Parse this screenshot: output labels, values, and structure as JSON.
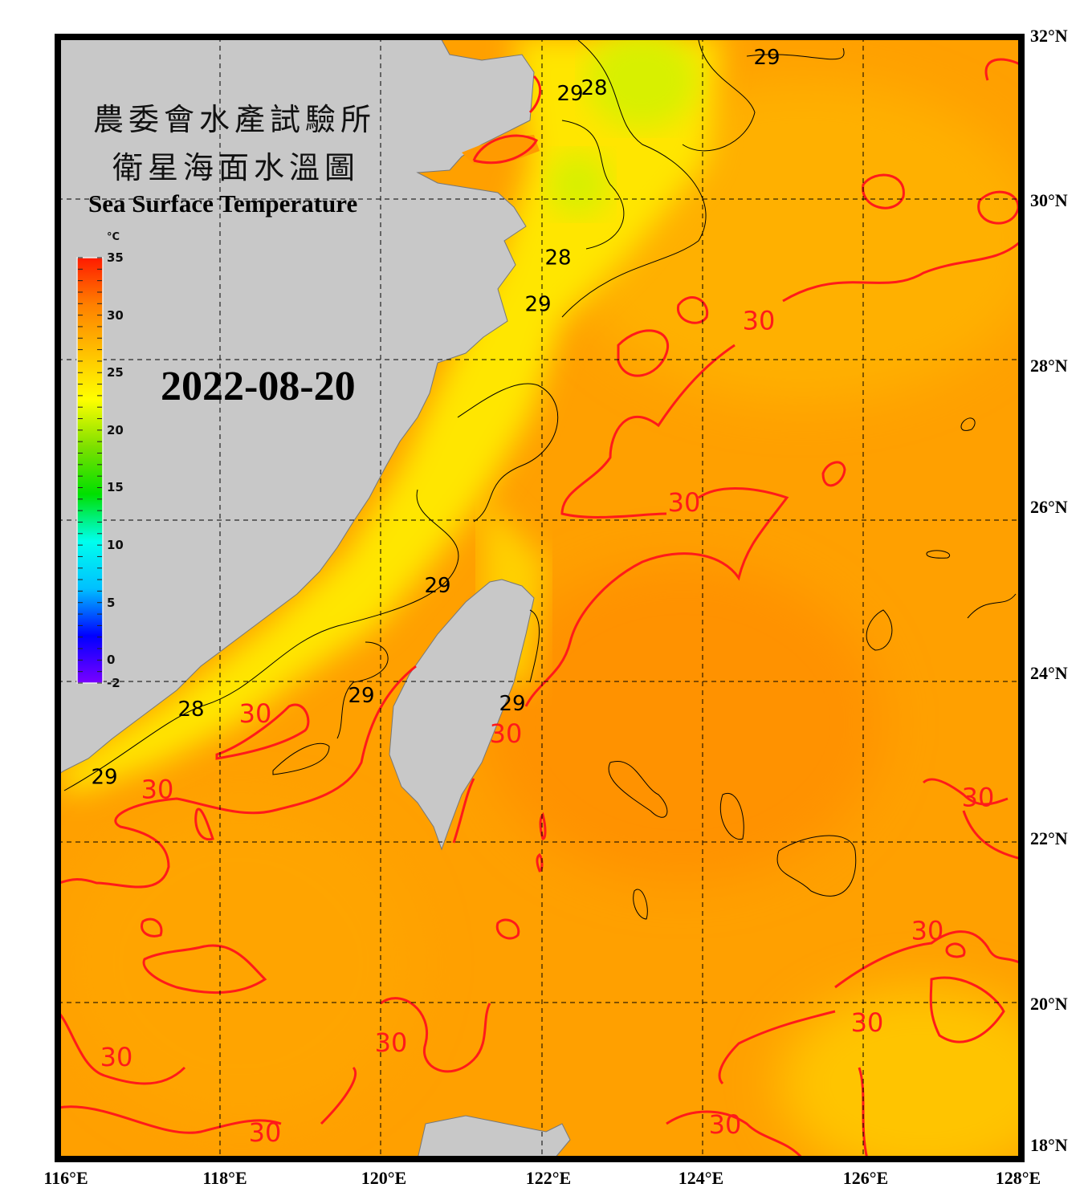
{
  "title_zh_line1": "農委會水產試驗所",
  "title_zh_line2": "衛星海面水溫圖",
  "title_en": "Sea Surface Temperature",
  "date": "2022-08-20",
  "colorbar": {
    "unit": "°C",
    "min": -2,
    "max": 35,
    "tick_labels": [
      "35",
      "30",
      "25",
      "20",
      "15",
      "10",
      "5",
      "0",
      "-2"
    ],
    "tick_values": [
      35,
      30,
      25,
      20,
      15,
      10,
      5,
      0,
      -2
    ],
    "colors": [
      "#7a00ff",
      "#0000ff",
      "#00c0ff",
      "#00ffee",
      "#00e000",
      "#7de000",
      "#ffff00",
      "#ffc000",
      "#ff8000",
      "#ff1a00"
    ]
  },
  "axes": {
    "lon_range": [
      116,
      128
    ],
    "lat_range": [
      18,
      32
    ],
    "lon_labels": [
      "116°E",
      "118°E",
      "120°E",
      "122°E",
      "124°E",
      "126°E",
      "128°E"
    ],
    "lat_labels": [
      "32°N",
      "30°N",
      "28°N",
      "26°N",
      "24°N",
      "22°N",
      "20°N",
      "18°N"
    ]
  },
  "colors": {
    "land": "#c8c8c8",
    "sea_warm": "#ff9f00",
    "sea_cool": "#ffe000",
    "contour_30": "#ff1a1a",
    "contour_other": "#000000"
  },
  "contour_labels": [
    {
      "text": "29",
      "lon": 124.83,
      "lat": 31.76,
      "color": "black"
    },
    {
      "text": "29",
      "lon": 122.38,
      "lat": 31.31,
      "color": "black"
    },
    {
      "text": "28",
      "lon": 122.68,
      "lat": 31.38,
      "color": "black"
    },
    {
      "text": "28",
      "lon": 122.23,
      "lat": 29.26,
      "color": "black"
    },
    {
      "text": "29",
      "lon": 121.98,
      "lat": 28.68,
      "color": "black"
    },
    {
      "text": "30",
      "lon": 124.73,
      "lat": 28.45,
      "color": "red"
    },
    {
      "text": "30",
      "lon": 123.8,
      "lat": 26.18,
      "color": "red"
    },
    {
      "text": "29",
      "lon": 120.73,
      "lat": 25.17,
      "color": "black"
    },
    {
      "text": "29",
      "lon": 119.78,
      "lat": 23.8,
      "color": "black"
    },
    {
      "text": "29",
      "lon": 121.66,
      "lat": 23.7,
      "color": "black"
    },
    {
      "text": "30",
      "lon": 121.58,
      "lat": 23.3,
      "color": "red"
    },
    {
      "text": "28",
      "lon": 117.66,
      "lat": 23.63,
      "color": "black"
    },
    {
      "text": "30",
      "lon": 118.46,
      "lat": 23.55,
      "color": "red"
    },
    {
      "text": "29",
      "lon": 116.58,
      "lat": 22.78,
      "color": "black"
    },
    {
      "text": "30",
      "lon": 117.24,
      "lat": 22.6,
      "color": "red"
    },
    {
      "text": "30",
      "lon": 127.46,
      "lat": 22.5,
      "color": "red"
    },
    {
      "text": "30",
      "lon": 126.83,
      "lat": 20.84,
      "color": "red"
    },
    {
      "text": "30",
      "lon": 126.08,
      "lat": 19.69,
      "color": "red"
    },
    {
      "text": "30",
      "lon": 120.15,
      "lat": 19.44,
      "color": "red"
    },
    {
      "text": "30",
      "lon": 116.73,
      "lat": 19.26,
      "color": "red"
    },
    {
      "text": "30",
      "lon": 118.58,
      "lat": 18.32,
      "color": "red"
    },
    {
      "text": "30",
      "lon": 124.31,
      "lat": 18.42,
      "color": "red"
    }
  ]
}
